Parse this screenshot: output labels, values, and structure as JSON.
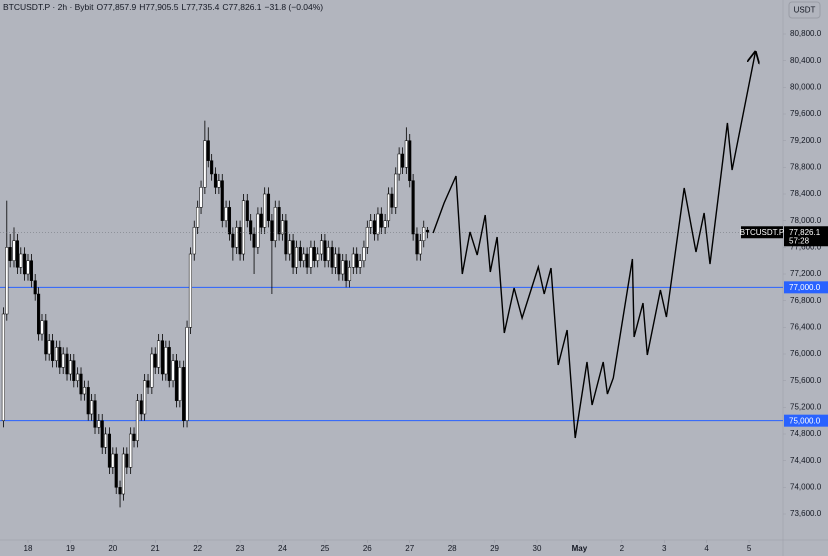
{
  "header": {
    "symbol": "BTCUSDT.P · 2h · Bybit",
    "open": "O77,857.9",
    "high": "H77,905.5",
    "low": "L77,735.4",
    "close": "C77,826.1",
    "change": "−31.8 (−0.04%)",
    "currency_button": "USDT"
  },
  "chart_data": {
    "type": "candlestick",
    "up_color": "#ffffff",
    "down_color": "#000000",
    "border_color": "#000000",
    "xlim": [
      17.34,
      35.8
    ],
    "ylim": [
      73210,
      81310
    ],
    "xticks": [
      18,
      19,
      20,
      21,
      22,
      23,
      24,
      25,
      26,
      27,
      28,
      29,
      30,
      {
        "value": 31,
        "label": "May"
      },
      {
        "value": 32,
        "label": "2"
      },
      {
        "value": 33,
        "label": "3"
      },
      {
        "value": 34,
        "label": "4"
      },
      {
        "value": 35,
        "label": "5"
      }
    ],
    "yticks": [
      {
        "value": 73600,
        "label": "73,600.0"
      },
      {
        "value": 74000,
        "label": "74,000.0"
      },
      {
        "value": 74400,
        "label": "74,400.0"
      },
      {
        "value": 74800,
        "label": "74,800.0"
      },
      {
        "value": 75200,
        "label": "75,200.0"
      },
      {
        "value": 75600,
        "label": "75,600.0"
      },
      {
        "value": 76000,
        "label": "76,000.0"
      },
      {
        "value": 76400,
        "label": "76,400.0"
      },
      {
        "value": 76800,
        "label": "76,800.0"
      },
      {
        "value": 77200,
        "label": "77,200.0"
      },
      {
        "value": 77600,
        "label": "77,600.0"
      },
      {
        "value": 78000,
        "label": "78,000.0"
      },
      {
        "value": 78400,
        "label": "78,400.0"
      },
      {
        "value": 78800,
        "label": "78,800.0"
      },
      {
        "value": 79200,
        "label": "79,200.0"
      },
      {
        "value": 79600,
        "label": "79,600.0"
      },
      {
        "value": 80000,
        "label": "80,000.0"
      },
      {
        "value": 80400,
        "label": "80,400.0"
      },
      {
        "value": 80800,
        "label": "80,800.0"
      }
    ],
    "levels": [
      {
        "value": 77000,
        "label": "77,000.0",
        "color": "#2962ff"
      },
      {
        "value": 75000,
        "label": "75,000.0",
        "color": "#2962ff"
      }
    ],
    "last_price": {
      "symbol": "BTCUSDT.P",
      "value": 77826.1,
      "label": "77,826.1",
      "countdown": "57:28"
    },
    "projection": {
      "color": "#000000",
      "x": [
        27.55,
        27.81,
        28.09,
        28.24,
        28.42,
        28.59,
        28.78,
        28.9,
        29.06,
        29.23,
        29.46,
        29.65,
        30.03,
        30.17,
        30.33,
        30.5,
        30.71,
        30.9,
        31.18,
        31.3,
        31.56,
        31.66,
        31.8,
        32.25,
        32.29,
        32.5,
        32.6,
        32.91,
        33.05,
        33.47,
        33.75,
        33.94,
        34.08,
        34.49,
        34.6,
        35.15
      ],
      "values": [
        77815,
        78265,
        78670,
        77200,
        77830,
        77485,
        78085,
        77230,
        77755,
        76315,
        76990,
        76540,
        77305,
        76900,
        77290,
        75835,
        76360,
        74740,
        75880,
        75235,
        75880,
        75400,
        75640,
        77425,
        76255,
        76765,
        75985,
        76960,
        76555,
        78490,
        77530,
        78115,
        77350,
        79465,
        78760,
        80530
      ]
    },
    "candles": [
      [
        17.42,
        75000,
        76700,
        74900,
        76600
      ],
      [
        17.5,
        76600,
        78300,
        76500,
        77600
      ],
      [
        17.58,
        77600,
        77800,
        77300,
        77400
      ],
      [
        17.67,
        77400,
        77900,
        77300,
        77700
      ],
      [
        17.75,
        77700,
        77800,
        77200,
        77300
      ],
      [
        17.83,
        77300,
        77600,
        77200,
        77500
      ],
      [
        17.92,
        77500,
        77600,
        77100,
        77200
      ],
      [
        18.0,
        77200,
        77500,
        77100,
        77400
      ],
      [
        18.08,
        77400,
        77500,
        77000,
        77100
      ],
      [
        18.17,
        77100,
        77200,
        76800,
        76900
      ],
      [
        18.25,
        76900,
        77000,
        76200,
        76300
      ],
      [
        18.33,
        76300,
        76600,
        76200,
        76500
      ],
      [
        18.42,
        76500,
        76600,
        75900,
        76000
      ],
      [
        18.5,
        76000,
        76300,
        75900,
        76200
      ],
      [
        18.58,
        76200,
        76300,
        75800,
        75900
      ],
      [
        18.67,
        75900,
        76200,
        75800,
        76100
      ],
      [
        18.75,
        76100,
        76200,
        75700,
        75800
      ],
      [
        18.83,
        75800,
        76100,
        75700,
        76000
      ],
      [
        18.92,
        76000,
        76100,
        75600,
        75700
      ],
      [
        19.0,
        75700,
        76000,
        75600,
        75900
      ],
      [
        19.08,
        75900,
        76000,
        75500,
        75600
      ],
      [
        19.17,
        75600,
        75800,
        75500,
        75700
      ],
      [
        19.25,
        75700,
        75800,
        75300,
        75400
      ],
      [
        19.33,
        75400,
        75600,
        75300,
        75500
      ],
      [
        19.42,
        75500,
        75600,
        75000,
        75100
      ],
      [
        19.5,
        75100,
        75400,
        75000,
        75300
      ],
      [
        19.58,
        75300,
        75400,
        74800,
        74900
      ],
      [
        19.67,
        74900,
        75100,
        74800,
        75000
      ],
      [
        19.75,
        75000,
        75100,
        74500,
        74600
      ],
      [
        19.83,
        74600,
        74900,
        74500,
        74800
      ],
      [
        19.92,
        74800,
        74900,
        74200,
        74300
      ],
      [
        20.0,
        74300,
        74600,
        74200,
        74500
      ],
      [
        20.08,
        74500,
        74600,
        73900,
        74000
      ],
      [
        20.17,
        74000,
        74100,
        73700,
        73900
      ],
      [
        20.25,
        73900,
        74600,
        73800,
        74500
      ],
      [
        20.33,
        74500,
        74600,
        74200,
        74300
      ],
      [
        20.42,
        74300,
        74900,
        74200,
        74800
      ],
      [
        20.5,
        74800,
        74900,
        74600,
        74700
      ],
      [
        20.58,
        74700,
        75400,
        74600,
        75300
      ],
      [
        20.67,
        75300,
        75400,
        75000,
        75100
      ],
      [
        20.75,
        75100,
        75700,
        75000,
        75600
      ],
      [
        20.83,
        75600,
        75700,
        75400,
        75500
      ],
      [
        20.92,
        75500,
        76100,
        75400,
        76000
      ],
      [
        21.0,
        76000,
        76100,
        75700,
        75800
      ],
      [
        21.08,
        75800,
        76300,
        75700,
        76200
      ],
      [
        21.17,
        76200,
        76300,
        75600,
        75700
      ],
      [
        21.25,
        75700,
        76200,
        75600,
        76100
      ],
      [
        21.33,
        76100,
        76200,
        75500,
        75600
      ],
      [
        21.42,
        75600,
        76000,
        75500,
        75900
      ],
      [
        21.5,
        75900,
        76000,
        75200,
        75300
      ],
      [
        21.58,
        75300,
        75900,
        75200,
        75800
      ],
      [
        21.67,
        75800,
        75900,
        74900,
        75000
      ],
      [
        21.75,
        75000,
        76500,
        74900,
        76400
      ],
      [
        21.83,
        76400,
        77600,
        76300,
        77500
      ],
      [
        21.92,
        77500,
        78000,
        77400,
        77900
      ],
      [
        22.0,
        77900,
        78300,
        77800,
        78200
      ],
      [
        22.08,
        78200,
        78600,
        78100,
        78500
      ],
      [
        22.17,
        78500,
        79500,
        78400,
        79200
      ],
      [
        22.25,
        79200,
        79400,
        78800,
        78900
      ],
      [
        22.33,
        78900,
        79000,
        78600,
        78700
      ],
      [
        22.42,
        78700,
        78800,
        78400,
        78500
      ],
      [
        22.5,
        78500,
        78700,
        78400,
        78600
      ],
      [
        22.58,
        78600,
        78700,
        77900,
        78000
      ],
      [
        22.67,
        78000,
        78300,
        77900,
        78200
      ],
      [
        22.75,
        78200,
        78300,
        77700,
        77800
      ],
      [
        22.83,
        77800,
        77900,
        77400,
        77600
      ],
      [
        22.92,
        77600,
        78000,
        77500,
        77900
      ],
      [
        23.0,
        77900,
        78000,
        77400,
        77500
      ],
      [
        23.08,
        77500,
        78400,
        77400,
        78300
      ],
      [
        23.17,
        78300,
        78400,
        77900,
        78000
      ],
      [
        23.25,
        78000,
        78100,
        77700,
        77800
      ],
      [
        23.33,
        77800,
        77900,
        77200,
        77600
      ],
      [
        23.42,
        77600,
        78200,
        77500,
        78100
      ],
      [
        23.5,
        78100,
        78200,
        77800,
        77900
      ],
      [
        23.58,
        77900,
        78500,
        77800,
        78400
      ],
      [
        23.67,
        78400,
        78500,
        77900,
        78000
      ],
      [
        23.75,
        78000,
        78100,
        76900,
        77700
      ],
      [
        23.83,
        77700,
        78300,
        77600,
        78200
      ],
      [
        23.92,
        78200,
        78300,
        77700,
        77800
      ],
      [
        24.0,
        77800,
        78100,
        77700,
        78000
      ],
      [
        24.08,
        78000,
        78100,
        77400,
        77500
      ],
      [
        24.17,
        77500,
        77800,
        77400,
        77700
      ],
      [
        24.25,
        77700,
        77800,
        77200,
        77300
      ],
      [
        24.33,
        77300,
        77700,
        77200,
        77600
      ],
      [
        24.42,
        77600,
        77700,
        77300,
        77400
      ],
      [
        24.5,
        77400,
        77600,
        77300,
        77500
      ],
      [
        24.58,
        77500,
        77600,
        77200,
        77300
      ],
      [
        24.67,
        77300,
        77700,
        77200,
        77600
      ],
      [
        24.75,
        77600,
        77700,
        77300,
        77400
      ],
      [
        24.83,
        77400,
        77600,
        77300,
        77500
      ],
      [
        24.92,
        77500,
        77800,
        77400,
        77700
      ],
      [
        25.0,
        77700,
        77800,
        77300,
        77400
      ],
      [
        25.08,
        77400,
        77700,
        77300,
        77600
      ],
      [
        25.17,
        77600,
        77700,
        77200,
        77300
      ],
      [
        25.25,
        77300,
        77600,
        77200,
        77500
      ],
      [
        25.33,
        77500,
        77600,
        77100,
        77200
      ],
      [
        25.42,
        77200,
        77500,
        77100,
        77400
      ],
      [
        25.5,
        77400,
        77500,
        77000,
        77100
      ],
      [
        25.58,
        77100,
        77400,
        77000,
        77300
      ],
      [
        25.67,
        77300,
        77600,
        77200,
        77500
      ],
      [
        25.75,
        77500,
        77600,
        77200,
        77300
      ],
      [
        25.83,
        77300,
        77500,
        77200,
        77400
      ],
      [
        25.92,
        77400,
        77700,
        77300,
        77600
      ],
      [
        26.0,
        77600,
        78000,
        77500,
        77900
      ],
      [
        26.08,
        77900,
        78100,
        77800,
        78000
      ],
      [
        26.17,
        78000,
        78100,
        77700,
        77800
      ],
      [
        26.25,
        77800,
        78200,
        77700,
        78100
      ],
      [
        26.33,
        78100,
        78200,
        77800,
        77900
      ],
      [
        26.42,
        77900,
        78100,
        77800,
        78000
      ],
      [
        26.5,
        78000,
        78500,
        77900,
        78400
      ],
      [
        26.58,
        78400,
        78500,
        78100,
        78200
      ],
      [
        26.67,
        78200,
        78800,
        78100,
        78700
      ],
      [
        26.75,
        78700,
        79100,
        78600,
        79000
      ],
      [
        26.83,
        79000,
        79100,
        78700,
        78800
      ],
      [
        26.92,
        78800,
        79400,
        78700,
        79200
      ],
      [
        27.0,
        79200,
        79300,
        78500,
        78600
      ],
      [
        27.08,
        78600,
        78700,
        77700,
        77800
      ],
      [
        27.17,
        77800,
        77900,
        77400,
        77500
      ],
      [
        27.25,
        77500,
        77800,
        77400,
        77700
      ],
      [
        27.33,
        77700,
        78000,
        77600,
        77900
      ],
      [
        27.42,
        77857.9,
        77905.5,
        77735.4,
        77826.1
      ]
    ]
  }
}
